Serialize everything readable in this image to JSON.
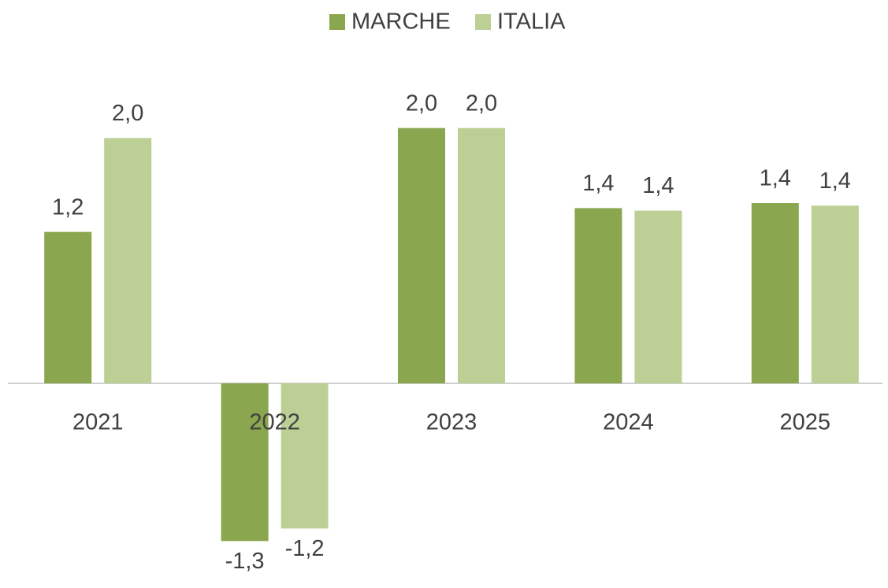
{
  "chart_data": {
    "type": "bar",
    "categories": [
      "2021",
      "2022",
      "2023",
      "2024",
      "2025"
    ],
    "series": [
      {
        "name": "MARCHE",
        "color": "#8aa64e",
        "values": [
          1.21,
          -1.26,
          2.04,
          1.4,
          1.44
        ],
        "value_labels": [
          "1,2",
          "-1,3",
          "2,0",
          "1,4",
          "1,4"
        ]
      },
      {
        "name": "ITALIA",
        "color": "#bcd096",
        "values": [
          1.96,
          -1.16,
          2.04,
          1.38,
          1.42
        ],
        "value_labels": [
          "2,0",
          "-1,2",
          "2,0",
          "1,4",
          "1,4"
        ]
      }
    ],
    "ylim": [
      -1.6,
      2.4
    ],
    "legend": "top"
  }
}
